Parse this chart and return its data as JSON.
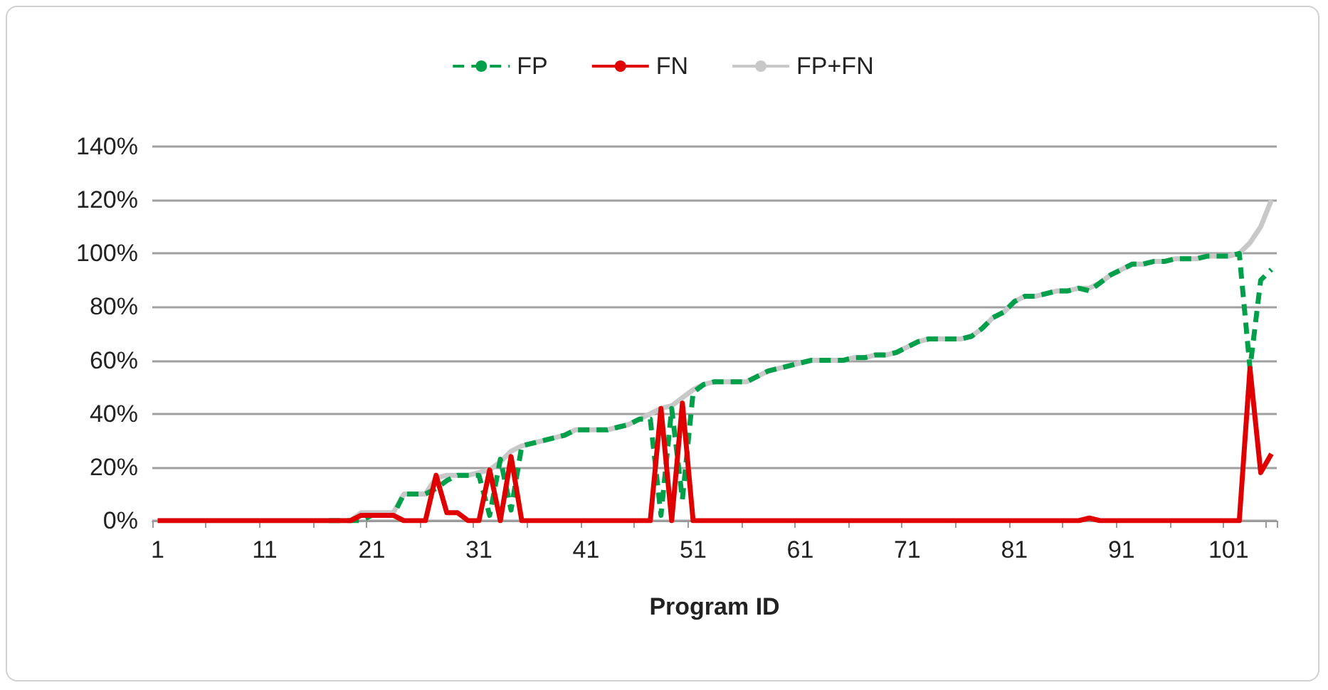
{
  "chart_data": {
    "type": "line",
    "xlabel": "Program ID",
    "categories": [
      "1",
      null,
      null,
      null,
      null,
      null,
      null,
      null,
      null,
      null,
      "11",
      null,
      null,
      null,
      null,
      null,
      null,
      null,
      null,
      null,
      "21",
      null,
      null,
      null,
      null,
      null,
      null,
      null,
      null,
      null,
      "31",
      null,
      null,
      null,
      null,
      null,
      null,
      null,
      null,
      null,
      "41",
      null,
      null,
      null,
      null,
      null,
      null,
      null,
      null,
      null,
      "51",
      null,
      null,
      null,
      null,
      null,
      null,
      null,
      null,
      null,
      "61",
      null,
      null,
      null,
      null,
      null,
      null,
      null,
      null,
      null,
      "71",
      null,
      null,
      null,
      null,
      null,
      null,
      null,
      null,
      null,
      "81",
      null,
      null,
      null,
      null,
      null,
      null,
      null,
      null,
      null,
      "91",
      null,
      null,
      null,
      null,
      null,
      null,
      null,
      null,
      null,
      "101",
      null,
      null,
      null,
      null
    ],
    "series": [
      {
        "name": "FP",
        "color": "#00a04a",
        "line_style": "dashed",
        "values": [
          null,
          null,
          null,
          null,
          null,
          null,
          null,
          null,
          null,
          null,
          null,
          null,
          null,
          null,
          null,
          null,
          0,
          0,
          0,
          0,
          2,
          2,
          2,
          10,
          10,
          10,
          12,
          15,
          17,
          17,
          17,
          2,
          23,
          4,
          28,
          29,
          30,
          31,
          32,
          34,
          34,
          34,
          34,
          35,
          36,
          38,
          38,
          2,
          42,
          8,
          48,
          51,
          52,
          52,
          52,
          52,
          54,
          56,
          57,
          58,
          59,
          60,
          60,
          60,
          60,
          61,
          61,
          62,
          62,
          63,
          65,
          67,
          68,
          68,
          68,
          68,
          69,
          72,
          76,
          78,
          82,
          84,
          84,
          85,
          86,
          86,
          87,
          86,
          89,
          92,
          94,
          96,
          96,
          97,
          97,
          98,
          98,
          98,
          99,
          99,
          99,
          100,
          57,
          90,
          94
        ]
      },
      {
        "name": "FN",
        "color": "#e00000",
        "line_style": "solid",
        "values": [
          0,
          0,
          0,
          0,
          0,
          0,
          0,
          0,
          0,
          0,
          0,
          0,
          0,
          0,
          0,
          0,
          0,
          0,
          0,
          2,
          2,
          2,
          2,
          0,
          0,
          0,
          17,
          3,
          3,
          0,
          0,
          19,
          0,
          24,
          0,
          0,
          0,
          0,
          0,
          0,
          0,
          0,
          0,
          0,
          0,
          0,
          0,
          42,
          0,
          44,
          0,
          0,
          0,
          0,
          0,
          0,
          0,
          0,
          0,
          0,
          0,
          0,
          0,
          0,
          0,
          0,
          0,
          0,
          0,
          0,
          0,
          0,
          0,
          0,
          0,
          0,
          0,
          0,
          0,
          0,
          0,
          0,
          0,
          0,
          0,
          0,
          0,
          1,
          0,
          0,
          0,
          0,
          0,
          0,
          0,
          0,
          0,
          0,
          0,
          0,
          0,
          0,
          57,
          18,
          25
        ]
      },
      {
        "name": "FP+FN",
        "color": "#c8c8c8",
        "line_style": "solid",
        "values": [
          0,
          0,
          0,
          0,
          0,
          0,
          0,
          0,
          0,
          0,
          0,
          0,
          0,
          0,
          0,
          0,
          0,
          0,
          0,
          3,
          3,
          3,
          3,
          10,
          10,
          10,
          16,
          17,
          17,
          17,
          18,
          19,
          22,
          26,
          28,
          29,
          30,
          31,
          32,
          34,
          34,
          34,
          34,
          35,
          36,
          38,
          40,
          42,
          43,
          46,
          49,
          51,
          52,
          52,
          52,
          52,
          54,
          56,
          57,
          58,
          59,
          60,
          60,
          60,
          60,
          61,
          61,
          62,
          62,
          63,
          65,
          67,
          68,
          68,
          68,
          68,
          69,
          72,
          76,
          78,
          82,
          84,
          84,
          85,
          86,
          86,
          87,
          87,
          89,
          92,
          94,
          96,
          96,
          97,
          97,
          98,
          98,
          98,
          99,
          99,
          99,
          100,
          104,
          110,
          120
        ]
      }
    ],
    "ylim": [
      0,
      140
    ],
    "yticks": [
      {
        "value": 0,
        "label": "0%"
      },
      {
        "value": 20,
        "label": "20%"
      },
      {
        "value": 40,
        "label": "40%"
      },
      {
        "value": 60,
        "label": "60%"
      },
      {
        "value": 80,
        "label": "80%"
      },
      {
        "value": 100,
        "label": "100%"
      },
      {
        "value": 120,
        "label": "120%"
      },
      {
        "value": 140,
        "label": "140%"
      }
    ],
    "grid": "y",
    "legend": "top",
    "marker": "none"
  }
}
